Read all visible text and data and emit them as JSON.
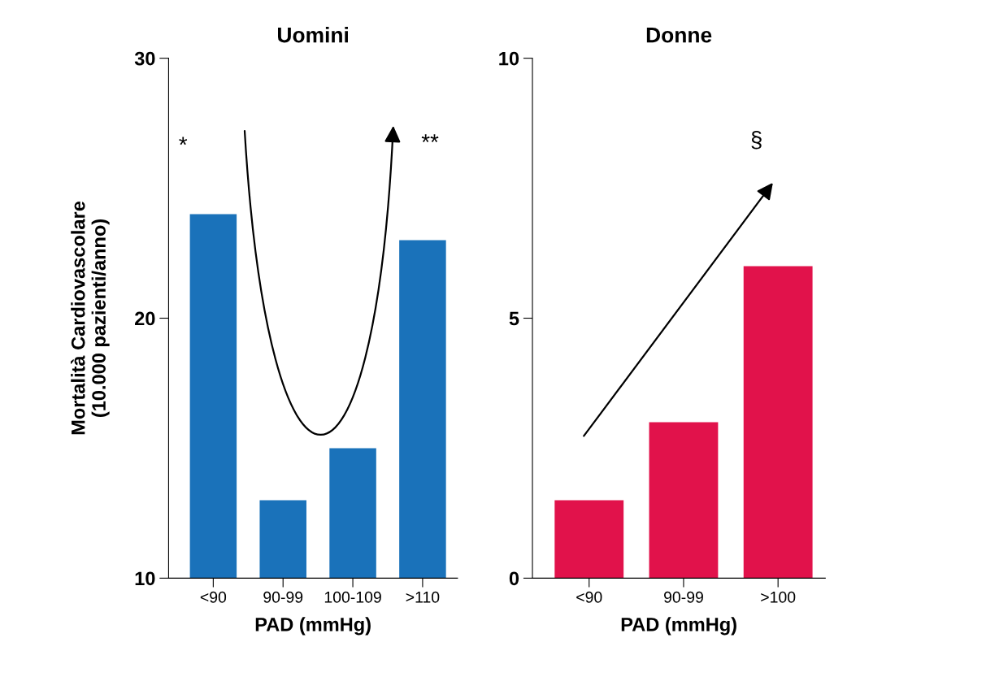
{
  "chart_data": [
    {
      "type": "bar",
      "title": "Uomini",
      "xlabel": "PAD (mmHg)",
      "ylabel": "Mortalità Cardiovascolare\n(10.000 pazienti/anno)",
      "categories": [
        "<90",
        "90-99",
        "100-109",
        ">110"
      ],
      "values": [
        24,
        13,
        15,
        23
      ],
      "color": "#1a72ba",
      "ylim": [
        10,
        30
      ],
      "yticks": [
        10,
        20,
        30
      ],
      "annotations": [
        "*",
        "**"
      ]
    },
    {
      "type": "bar",
      "title": "Donne",
      "xlabel": "PAD (mmHg)",
      "categories": [
        "<90",
        "90-99",
        ">100"
      ],
      "values": [
        1.5,
        3,
        6
      ],
      "color": "#e1124b",
      "ylim": [
        0,
        10
      ],
      "yticks": [
        0,
        5,
        10
      ],
      "annotations": [
        "§"
      ]
    }
  ]
}
